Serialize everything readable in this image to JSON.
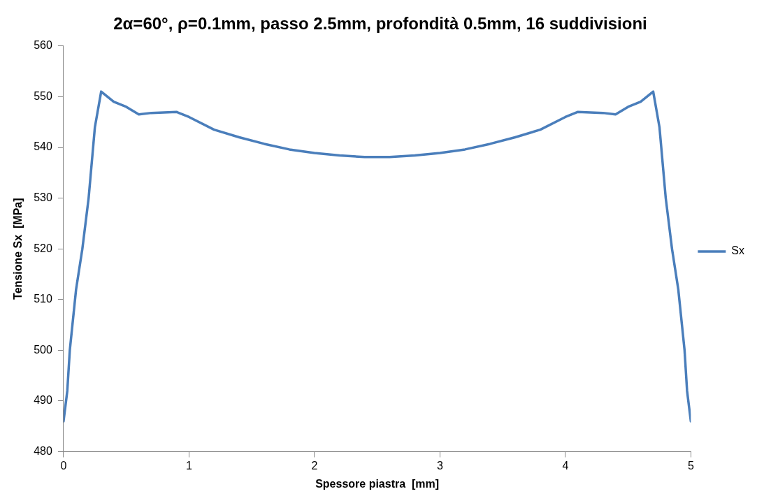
{
  "chart_data": {
    "type": "line",
    "title": "2α=60°, ρ=0.1mm, passo 2.5mm, profondità 0.5mm, 16 suddivisioni",
    "xlabel": "Spessore piastra  [mm]",
    "ylabel": "Tensione Sx  [MPa]",
    "x": [
      0,
      0.03,
      0.05,
      0.1,
      0.15,
      0.2,
      0.25,
      0.3,
      0.4,
      0.5,
      0.6,
      0.7,
      0.8,
      0.9,
      1.0,
      1.2,
      1.4,
      1.6,
      1.8,
      2.0,
      2.2,
      2.4,
      2.6,
      2.8,
      3.0,
      3.2,
      3.4,
      3.6,
      3.8,
      4.0,
      4.1,
      4.2,
      4.3,
      4.4,
      4.5,
      4.6,
      4.7,
      4.75,
      4.8,
      4.85,
      4.9,
      4.95,
      4.97,
      5
    ],
    "series": [
      {
        "name": "Sx",
        "color": "#4a7ebb",
        "values": [
          486,
          492,
          500,
          512,
          520,
          530,
          544,
          551,
          549,
          548,
          546.5,
          546.8,
          546.9,
          547,
          546,
          543.5,
          542,
          540.7,
          539.6,
          538.9,
          538.4,
          538.1,
          538.1,
          538.4,
          538.9,
          539.6,
          540.7,
          542,
          543.5,
          546,
          547,
          546.9,
          546.8,
          546.5,
          548,
          549,
          551,
          544,
          530,
          520,
          512,
          500,
          492,
          486
        ]
      }
    ],
    "xlim": [
      0,
      5
    ],
    "xticks": [
      0,
      1,
      2,
      3,
      4,
      5
    ],
    "ylim": [
      480,
      560
    ],
    "yticks": [
      480,
      490,
      500,
      510,
      520,
      530,
      540,
      550,
      560
    ],
    "grid": false,
    "legend": "right",
    "marker": "none",
    "line_style": "solid"
  }
}
